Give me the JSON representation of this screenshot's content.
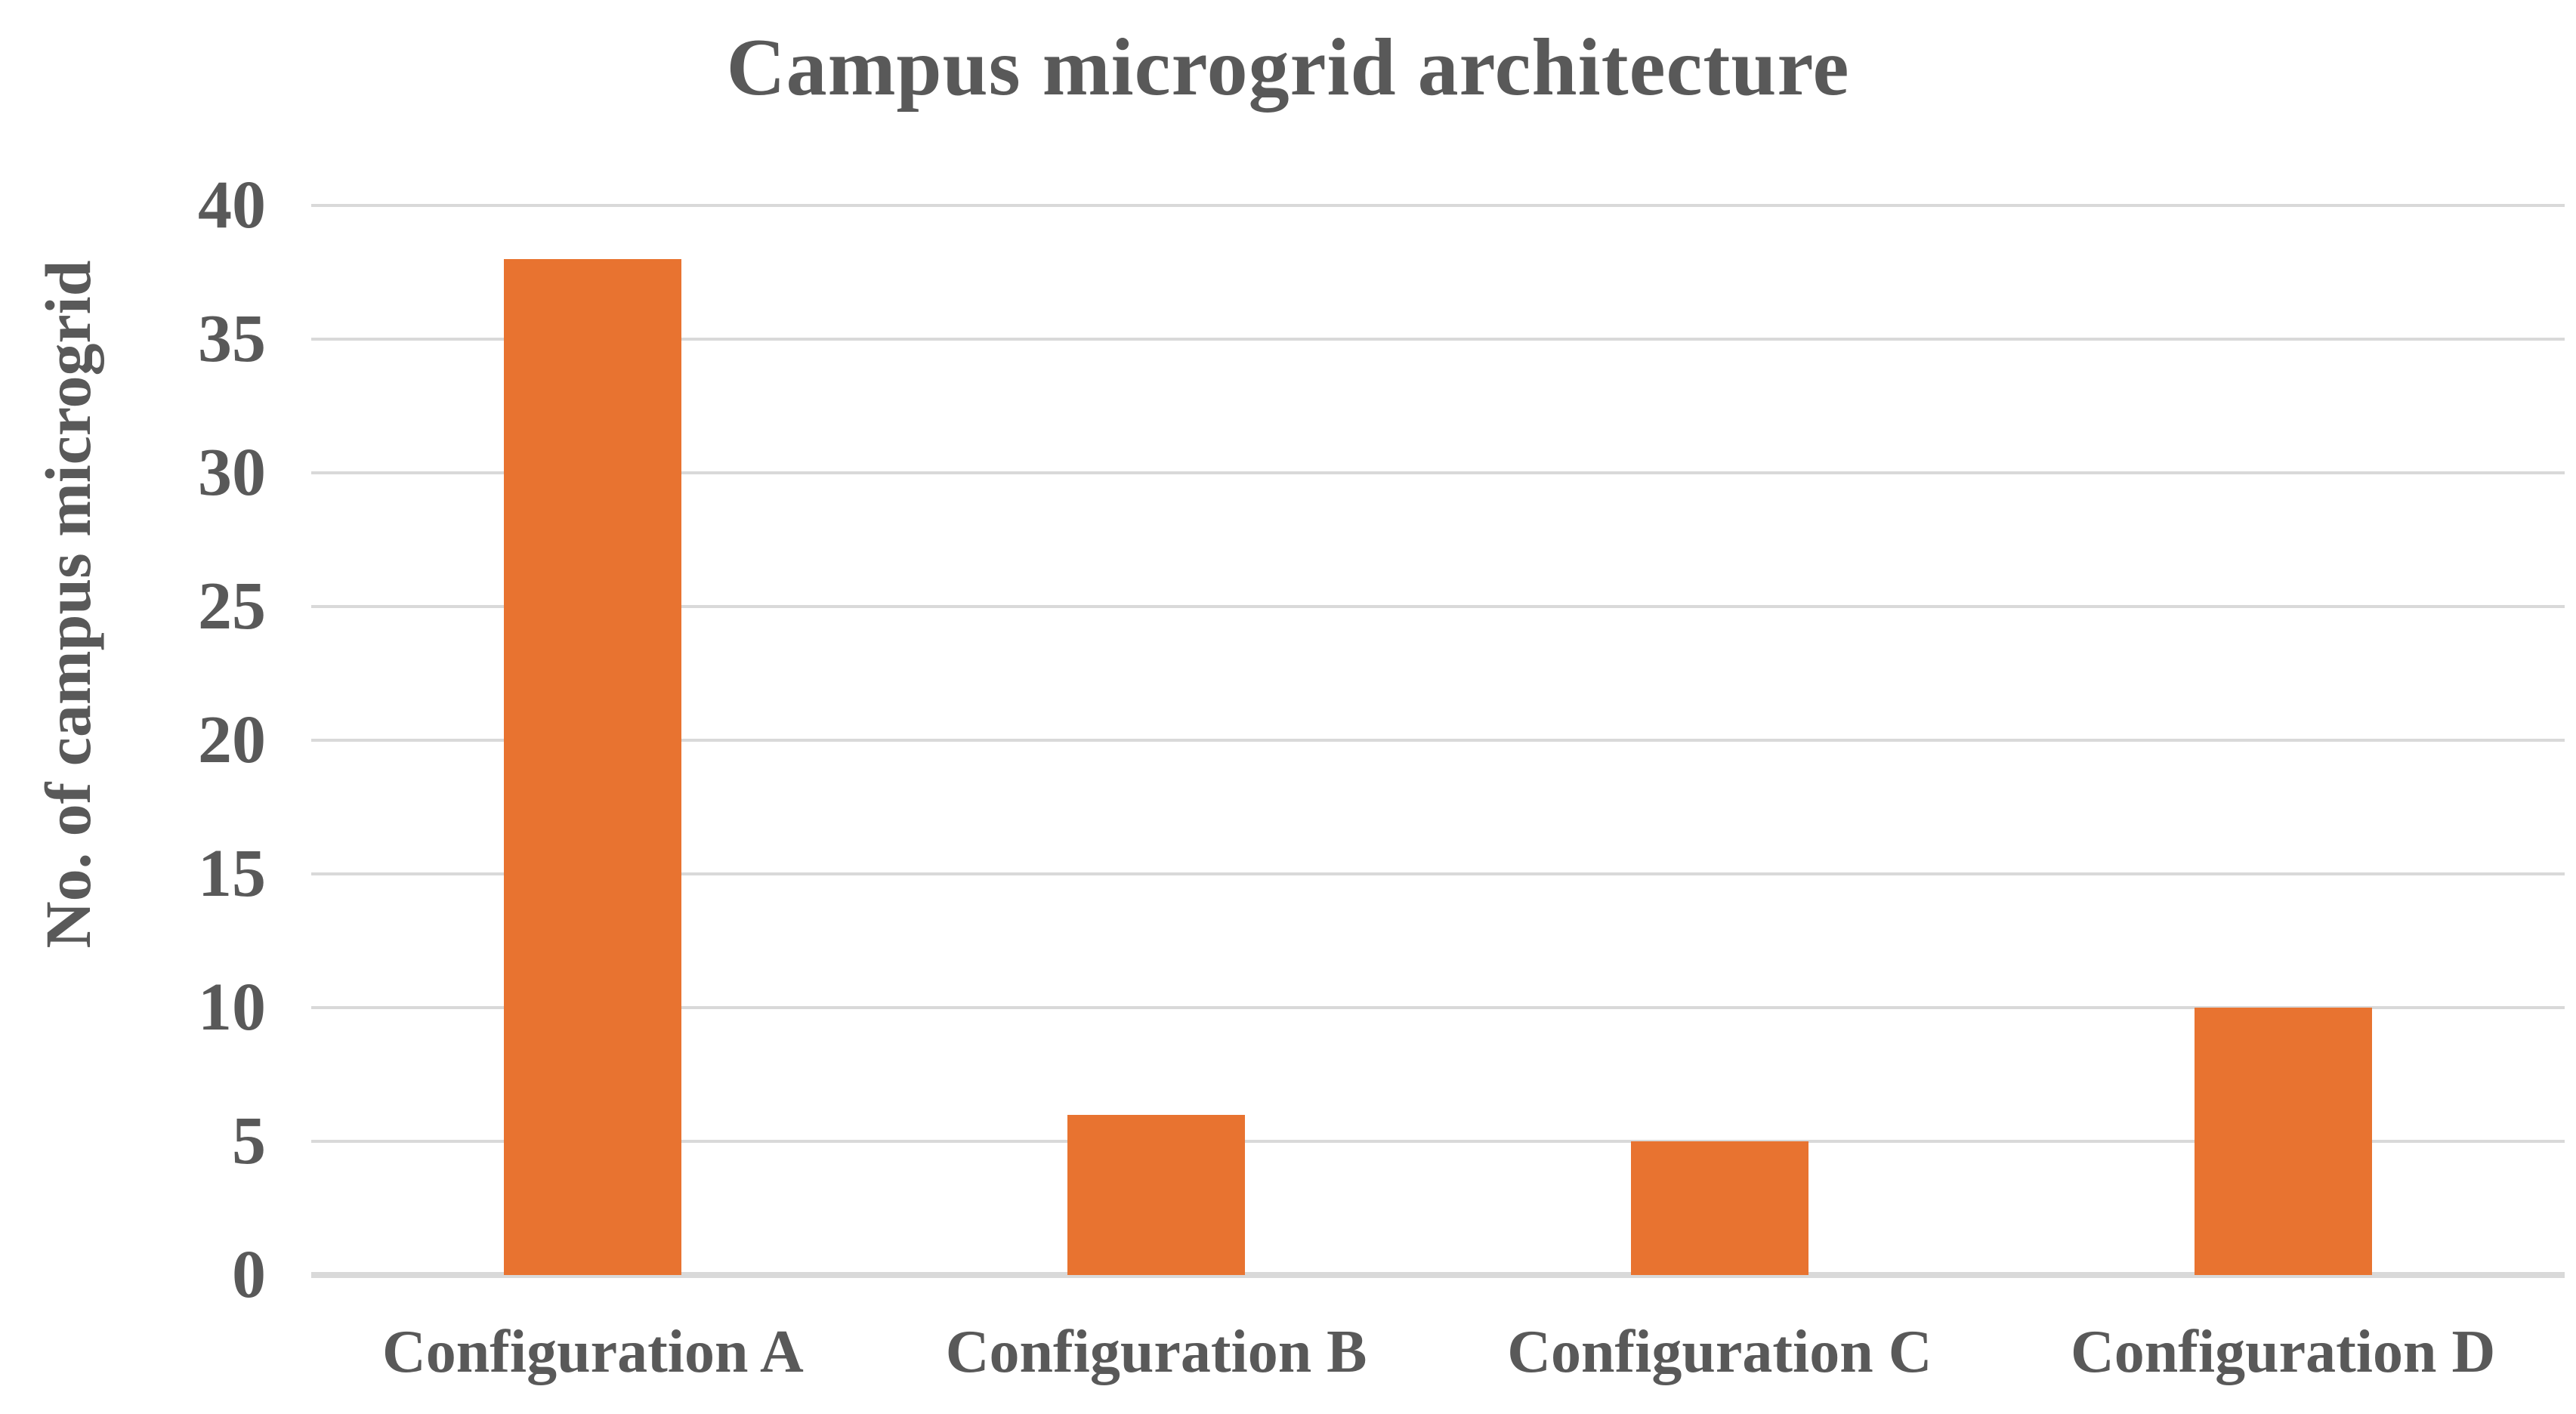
{
  "chart_data": {
    "type": "bar",
    "title": "Campus microgrid architecture",
    "ylabel": "No. of campus microgrid",
    "xlabel": "",
    "categories": [
      "Configuration A",
      "Configuration B",
      "Configuration C",
      "Configuration D"
    ],
    "values": [
      38,
      6,
      5,
      10
    ],
    "ylim": [
      0,
      40
    ],
    "yticks": [
      0,
      5,
      10,
      15,
      20,
      25,
      30,
      35,
      40
    ],
    "grid": true,
    "legend": false,
    "bar_color": "#e87330",
    "gridline_color": "#d9d9d9",
    "text_color": "#595959",
    "background_color": "#ffffff"
  }
}
